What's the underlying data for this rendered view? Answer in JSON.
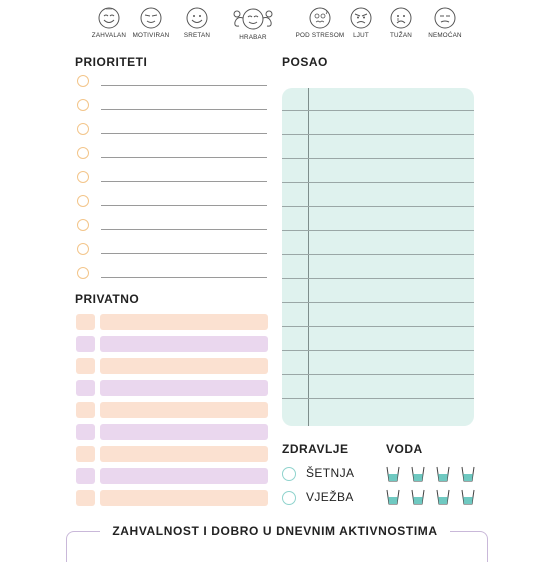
{
  "moods": [
    {
      "label": "ZAHVALAN",
      "icon": "thankful-face-icon"
    },
    {
      "label": "MOTIVIRAN",
      "icon": "motivated-face-icon"
    },
    {
      "label": "SRETAN",
      "icon": "happy-face-icon"
    },
    {
      "label": "HRABAR",
      "icon": "brave-face-icon"
    },
    {
      "label": "POD STRESOM",
      "icon": "stressed-face-icon"
    },
    {
      "label": "LJUT",
      "icon": "angry-face-icon"
    },
    {
      "label": "TUŽAN",
      "icon": "sad-face-icon"
    },
    {
      "label": "NEMOĆAN",
      "icon": "powerless-face-icon"
    }
  ],
  "sections": {
    "prioriteti": "PRIORITETI",
    "posao": "POSAO",
    "privatno": "PRIVATNO",
    "zdravlje": "ZDRAVLJE",
    "voda": "VODA",
    "gratitude": "ZAHVALNOST I DOBRO U DNEVNIM AKTIVNOSTIMA"
  },
  "health_items": [
    "ŠETNJA",
    "VJEŽBA"
  ],
  "colors": {
    "priority_circle": "#f3c58a",
    "peach": "#fbe1d1",
    "lilac": "#ead7ee",
    "posao_bg": "#dff2ee",
    "health_circle": "#8fd3cd",
    "water": "#6fc9c1"
  }
}
